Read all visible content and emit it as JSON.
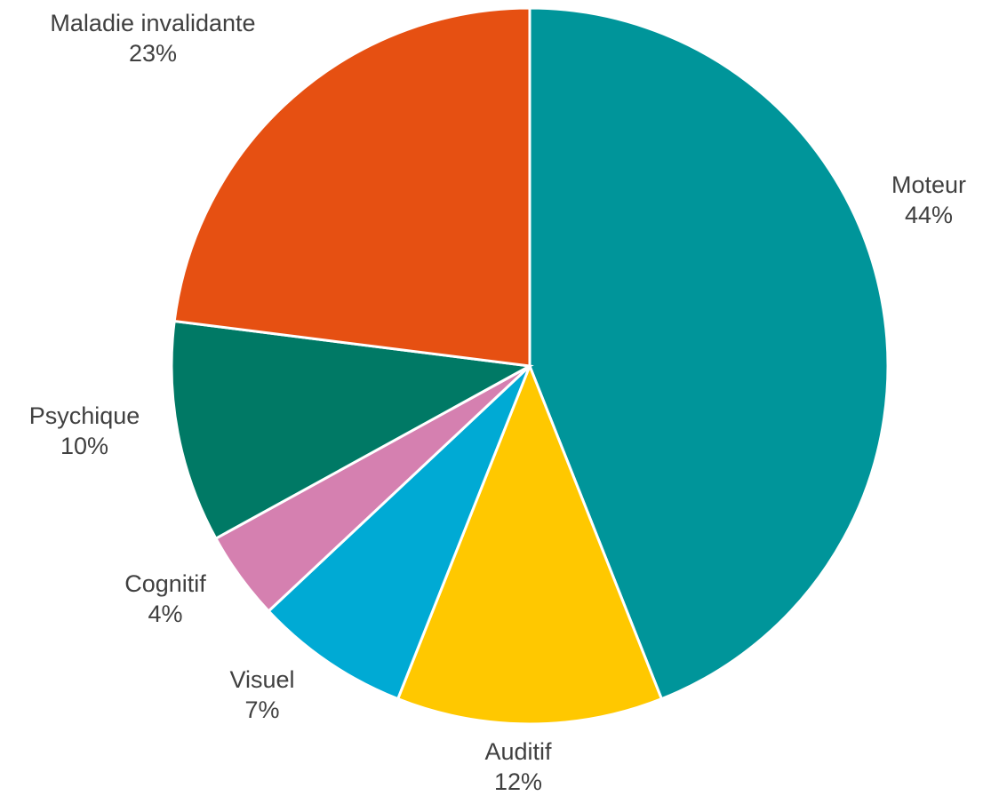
{
  "chart_data": {
    "type": "pie",
    "title": "",
    "categories": [
      "Moteur",
      "Auditif",
      "Visuel",
      "Cognitif",
      "Psychique",
      "Maladie invalidante"
    ],
    "values": [
      44,
      12,
      7,
      4,
      10,
      23
    ],
    "value_labels": [
      "44%",
      "12%",
      "7%",
      "4%",
      "10%",
      "23%"
    ],
    "colors": [
      "#00959A",
      "#FFC800",
      "#00AAD4",
      "#D580B0",
      "#007965",
      "#E65012"
    ],
    "start_angle": "top (12 o'clock)",
    "direction": "clockwise",
    "legend": "none (labels outside slices)"
  }
}
